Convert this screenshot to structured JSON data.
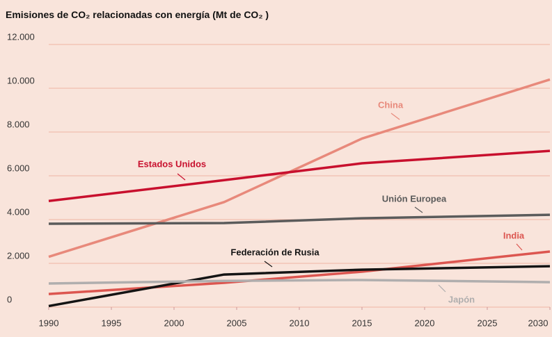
{
  "chart_data": {
    "type": "line",
    "title": "Emisiones de CO₂ relacionadas con energía (Mt de CO₂ )",
    "x": [
      1990,
      2004,
      2015,
      2030
    ],
    "xlim": [
      1990,
      2030
    ],
    "xticks": [
      1990,
      1995,
      2000,
      2005,
      2010,
      2015,
      2020,
      2025,
      2030
    ],
    "ylim": [
      0,
      12000
    ],
    "yticks": [
      0,
      {
        "value": 2000,
        "label": "2.000"
      },
      {
        "value": 4000,
        "label": "4.000"
      },
      {
        "value": 6000,
        "label": "6.000"
      },
      {
        "value": 8000,
        "label": "8.000"
      },
      {
        "value": 10000,
        "label": "10.000"
      },
      {
        "value": 12000,
        "label": "12.000"
      }
    ],
    "grid": true,
    "series": [
      {
        "name": "China",
        "color": "#e8897b",
        "values": [
          2300,
          4800,
          7700,
          10400
        ]
      },
      {
        "name": "Estados Unidos",
        "color": "#c8102e",
        "values": [
          4850,
          5800,
          6570,
          7140
        ]
      },
      {
        "name": "Unión Europea",
        "color": "#5b5b5b",
        "values": [
          3810,
          3840,
          4060,
          4220
        ]
      },
      {
        "name": "India",
        "color": "#dc5650",
        "values": [
          600,
          1110,
          1620,
          2540
        ]
      },
      {
        "name": "Federación de Rusia",
        "color": "#141414",
        "values": [
          50,
          1490,
          1710,
          1870
        ]
      },
      {
        "name": "Japón",
        "color": "#b0aeae",
        "values": [
          1080,
          1200,
          1240,
          1140
        ]
      }
    ]
  }
}
